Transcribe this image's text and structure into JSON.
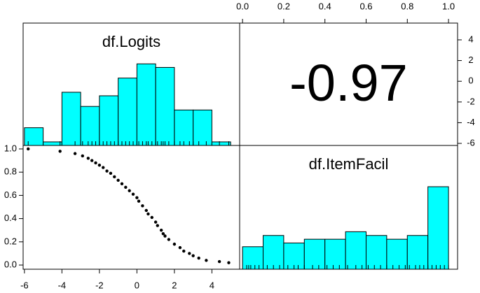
{
  "chart_data": [
    {
      "type": "histogram",
      "title": "df.Logits",
      "color": "#00ffff",
      "bins": [
        -6,
        -5,
        -4,
        -3,
        -2,
        -1,
        0,
        1,
        2,
        3,
        4,
        5
      ],
      "counts": [
        5,
        1,
        15,
        11,
        14,
        19,
        23,
        22,
        10,
        10,
        1
      ],
      "xlim": [
        -6.07,
        5.48
      ],
      "ylim": [
        0,
        34.5
      ]
    },
    {
      "type": "correlation",
      "value": -0.97,
      "xlim": [
        -0.014,
        1.044
      ],
      "xticks": [
        {
          "value": 0,
          "label": "0.0"
        },
        0.2,
        0.4,
        0.6,
        0.8,
        {
          "value": 1,
          "label": "1.0"
        }
      ],
      "ylim": [
        -6.2,
        5.62
      ],
      "yticks": [
        -6,
        -4,
        -2,
        0,
        2,
        4
      ]
    },
    {
      "type": "scatter",
      "color": "#000000",
      "x": [
        -5.8,
        -4.1,
        -3.3,
        -2.9,
        -2.6,
        -2.4,
        -2.2,
        -2.0,
        -1.8,
        -1.6,
        -1.4,
        -1.2,
        -1.0,
        -0.8,
        -0.6,
        -0.4,
        -0.2,
        0.0,
        0.1,
        0.3,
        0.5,
        0.6,
        0.8,
        1.0,
        1.1,
        1.3,
        1.4,
        1.5,
        1.7,
        2.0,
        2.3,
        2.5,
        2.8,
        3.0,
        3.3,
        3.7,
        4.4,
        4.9
      ],
      "y": [
        1.0,
        0.98,
        0.96,
        0.94,
        0.92,
        0.9,
        0.88,
        0.86,
        0.84,
        0.81,
        0.79,
        0.76,
        0.73,
        0.7,
        0.67,
        0.64,
        0.61,
        0.58,
        0.55,
        0.51,
        0.47,
        0.44,
        0.41,
        0.37,
        0.34,
        0.3,
        0.27,
        0.25,
        0.22,
        0.18,
        0.15,
        0.12,
        0.1,
        0.08,
        0.06,
        0.04,
        0.03,
        0.02
      ],
      "xlim": [
        -6.07,
        5.48
      ],
      "xticks": [
        -6,
        -4,
        -2,
        0,
        2,
        4
      ],
      "ylim": [
        -0.036,
        1.03
      ],
      "yticks": [
        {
          "value": 0,
          "label": "0.0"
        },
        0.2,
        0.4,
        0.6,
        0.8,
        {
          "value": 1,
          "label": "1.0"
        }
      ]
    },
    {
      "type": "histogram",
      "title": "df.ItemFacil",
      "color": "#00ffff",
      "bins": [
        0,
        0.1,
        0.2,
        0.3,
        0.4,
        0.5,
        0.6,
        0.7,
        0.8,
        0.9,
        1.0
      ],
      "counts": [
        6,
        9,
        7,
        8,
        8,
        10,
        9,
        8,
        9,
        22
      ],
      "xlim": [
        -0.014,
        1.044
      ],
      "ylim": [
        0,
        33
      ]
    }
  ]
}
